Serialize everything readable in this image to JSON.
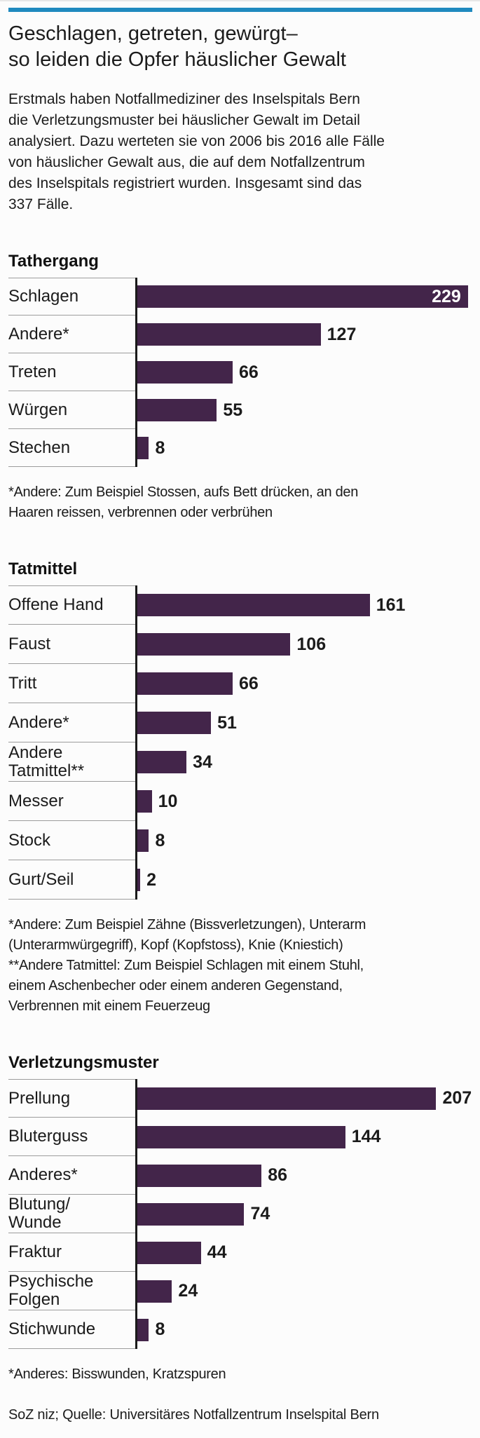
{
  "header": {
    "title": "Geschlagen, getreten, gewürgt–\nso leiden die Opfer häuslicher Gewalt",
    "intro": "Erstmals haben Notfallmediziner des Inselspitals Bern\ndie Verletzungsmuster bei häuslicher Gewalt im Detail\nanalysiert. Dazu werteten sie von 2006 bis 2016 alle Fälle\nvon häuslicher Gewalt aus, die auf dem Notfallzentrum\ndes Inselspitals registriert wurden. Insgesamt sind das\n337 Fälle."
  },
  "colors": {
    "accent_bar": "#208abf",
    "bar": "#43254a",
    "text": "#1b1b1b",
    "separator": "#9c9c9c",
    "value_inside_bar": "#ffffff"
  },
  "chart_data": [
    {
      "type": "bar",
      "orientation": "horizontal",
      "title": "Tathergang",
      "categories": [
        "Schlagen",
        "Andere*",
        "Treten",
        "Würgen",
        "Stechen"
      ],
      "values": [
        229,
        127,
        66,
        55,
        8
      ],
      "xlim": [
        0,
        232
      ],
      "grid": false,
      "value_labels": "end-of-bar",
      "footnote": "*Andere: Zum Beispiel Stossen, aufs Bett drücken, an den\nHaaren reissen, verbrennen oder verbrühen"
    },
    {
      "type": "bar",
      "orientation": "horizontal",
      "title": "Tatmittel",
      "categories": [
        "Offene Hand",
        "Faust",
        "Tritt",
        "Andere*",
        "Andere\nTatmittel**",
        "Messer",
        "Stock",
        "Gurt/Seil"
      ],
      "values": [
        161,
        106,
        66,
        51,
        34,
        10,
        8,
        2
      ],
      "xlim": [
        0,
        232
      ],
      "grid": false,
      "value_labels": "end-of-bar",
      "footnote": "*Andere: Zum Beispiel Zähne (Bissverletzungen), Unterarm\n(Unterarmwürgegriff), Kopf (Kopfstoss), Knie (Kniestich)\n**Andere Tatmittel: Zum Beispiel Schlagen mit einem Stuhl,\neinem Aschenbecher oder einem anderen Gegenstand,\nVerbrennen mit einem Feuerzeug"
    },
    {
      "type": "bar",
      "orientation": "horizontal",
      "title": "Verletzungsmuster",
      "categories": [
        "Prellung",
        "Bluterguss",
        "Anderes*",
        "Blutung/\nWunde",
        "Fraktur",
        "Psychische\nFolgen",
        "Stichwunde"
      ],
      "values": [
        207,
        144,
        86,
        74,
        44,
        24,
        8
      ],
      "xlim": [
        0,
        232
      ],
      "grid": false,
      "value_labels": "end-of-bar",
      "footnote": "*Anderes: Bisswunden, Kratzspuren"
    }
  ],
  "footer": {
    "source": "SoZ niz; Quelle: Universitäres Notfallzentrum Inselspital Bern"
  }
}
